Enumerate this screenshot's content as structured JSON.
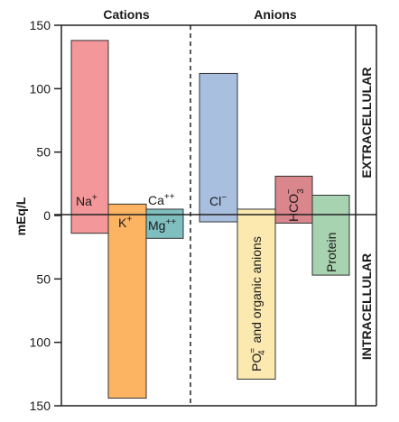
{
  "chart_data": {
    "type": "bar",
    "title": "",
    "ylabel": "mEq/L",
    "ylim": [
      -150,
      150
    ],
    "yticks": [
      {
        "value": 150,
        "label": "150"
      },
      {
        "value": 100,
        "label": "100"
      },
      {
        "value": 50,
        "label": "50"
      },
      {
        "value": 0,
        "label": "0"
      },
      {
        "value": -50,
        "label": "50"
      },
      {
        "value": -100,
        "label": "100"
      },
      {
        "value": -150,
        "label": "150"
      }
    ],
    "groups": [
      {
        "label": "Cations",
        "side": "left"
      },
      {
        "label": "Anions",
        "side": "right"
      }
    ],
    "sections": [
      {
        "label": "EXTRACELLULAR",
        "range": [
          0,
          150
        ],
        "note": "positive values"
      },
      {
        "label": "INTRACELLULAR",
        "range": [
          -150,
          0
        ],
        "note": "negative values"
      }
    ],
    "series": [
      {
        "name": "Extracellular",
        "bars": [
          {
            "ion": "Na+",
            "group": "Cations",
            "value": 138,
            "color": "#f4979a"
          },
          {
            "ion": "K+",
            "group": "Cations",
            "value": 9,
            "color": "#fdb462"
          },
          {
            "ion": "Ca++/Mg++",
            "group": "Cations",
            "value": 5,
            "color": "#7fbfbf"
          },
          {
            "ion": "Cl-",
            "group": "Anions",
            "value": 112,
            "color": "#a9bfe0"
          },
          {
            "ion": "PO4= and organic anions",
            "group": "Anions",
            "value": 5,
            "color": "#fce9b0"
          },
          {
            "ion": "HCO3-",
            "group": "Anions",
            "value": 31,
            "color": "#d9868c"
          },
          {
            "ion": "Protein",
            "group": "Anions",
            "value": 16,
            "color": "#a7d3b0"
          }
        ]
      },
      {
        "name": "Intracellular",
        "bars": [
          {
            "ion": "Na+",
            "group": "Cations",
            "value": 14,
            "color": "#f4979a"
          },
          {
            "ion": "K+",
            "group": "Cations",
            "value": 144,
            "color": "#fdb462"
          },
          {
            "ion": "Ca++/Mg++",
            "group": "Cations",
            "value": 18,
            "color": "#7fbfbf"
          },
          {
            "ion": "Cl-",
            "group": "Anions",
            "value": 5,
            "color": "#a9bfe0"
          },
          {
            "ion": "PO4= and organic anions",
            "group": "Anions",
            "value": 129,
            "color": "#fce9b0"
          },
          {
            "ion": "HCO3-",
            "group": "Anions",
            "value": 6,
            "color": "#d9868c"
          },
          {
            "ion": "Protein",
            "group": "Anions",
            "value": 47,
            "color": "#a7d3b0"
          }
        ]
      }
    ],
    "bar_labels": {
      "na": "Na",
      "na_sup": "+",
      "k": "K",
      "k_sup": "+",
      "ca": "Ca",
      "ca_sup": "++",
      "mg": "Mg",
      "mg_sup": "++",
      "cl": "Cl",
      "cl_sup": "−",
      "po4": "PO",
      "po4_sup": "=",
      "po4_sub": "4",
      "po4_rest": " and organic anions",
      "hco3": "HCO",
      "hco3_sub": "3",
      "hco3_sup": "−",
      "protein": "Protein"
    },
    "grid": false
  }
}
